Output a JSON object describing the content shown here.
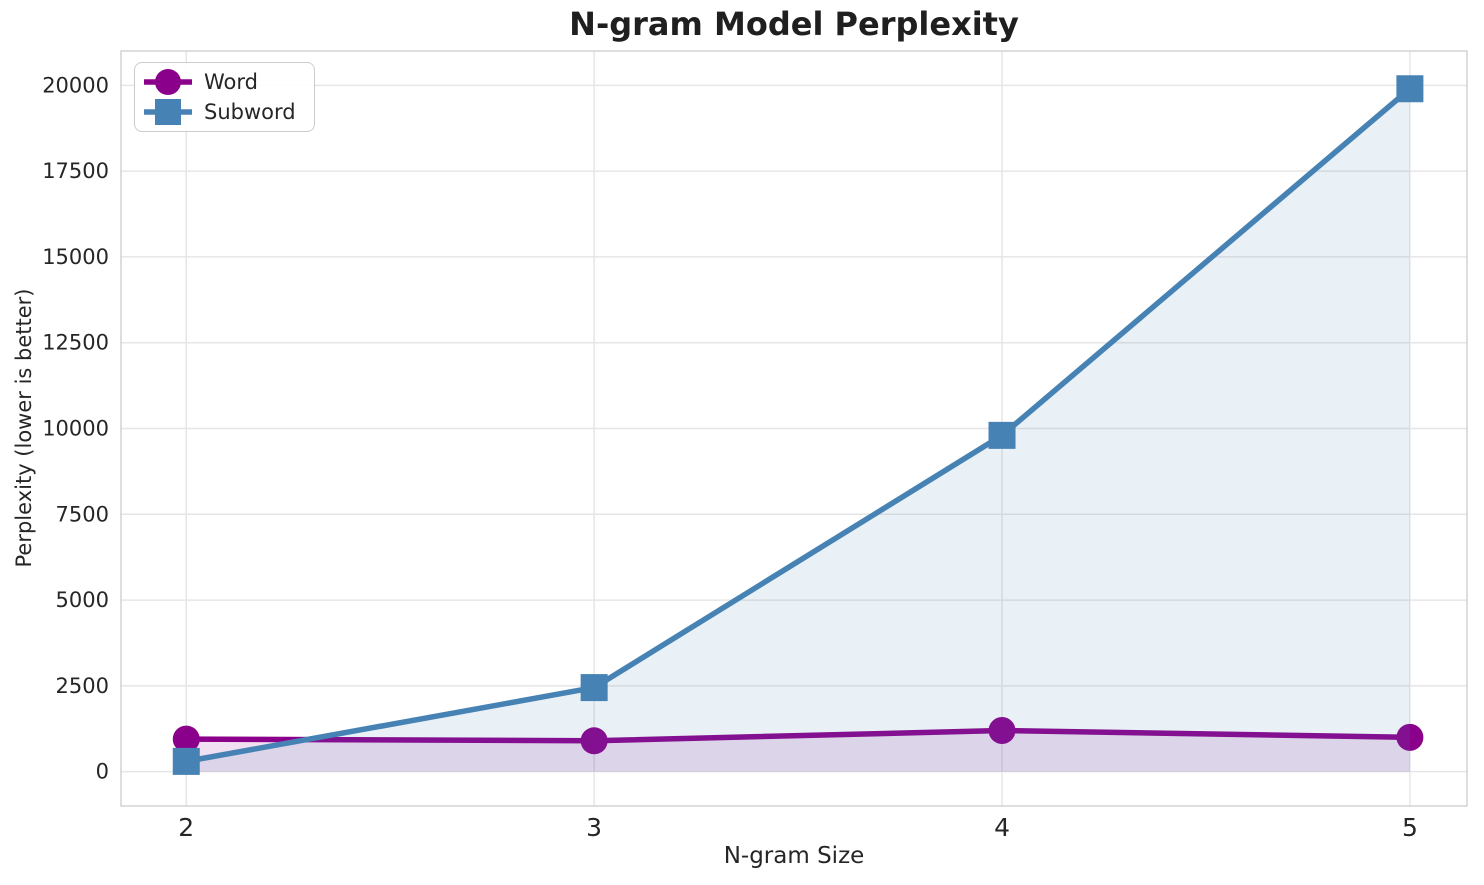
{
  "chart_data": {
    "type": "line",
    "title": "N-gram Model Perplexity",
    "xlabel": "N-gram Size",
    "ylabel": "Perplexity (lower is better)",
    "x": [
      2,
      3,
      4,
      5
    ],
    "xtick_labels": [
      "2",
      "3",
      "4",
      "5"
    ],
    "ytick_values": [
      0,
      2500,
      5000,
      7500,
      10000,
      12500,
      15000,
      17500,
      20000
    ],
    "ytick_labels": [
      "0",
      "2500",
      "5000",
      "7500",
      "10000",
      "12500",
      "15000",
      "17500",
      "20000"
    ],
    "xlim": [
      1.84,
      5.14
    ],
    "ylim": [
      -1000,
      21000
    ],
    "grid": true,
    "legend": {
      "position": "upper-left",
      "entries": [
        "Word",
        "Subword"
      ]
    },
    "series": [
      {
        "name": "Word",
        "values": [
          950,
          900,
          1200,
          1000
        ],
        "color": "#8B008B",
        "marker": "circle",
        "area_fill": true
      },
      {
        "name": "Subword",
        "values": [
          300,
          2450,
          9800,
          19900
        ],
        "color": "#4682B4",
        "marker": "square",
        "area_fill": true
      }
    ],
    "style": {
      "background": "#FFFFFF",
      "grid_color": "#E6E6E6",
      "spine_color": "#CCCCCC",
      "text_color": "#262626",
      "title_color": "#1F1F1F",
      "fill_opacity": 0.12,
      "line_width": 5.5
    }
  }
}
